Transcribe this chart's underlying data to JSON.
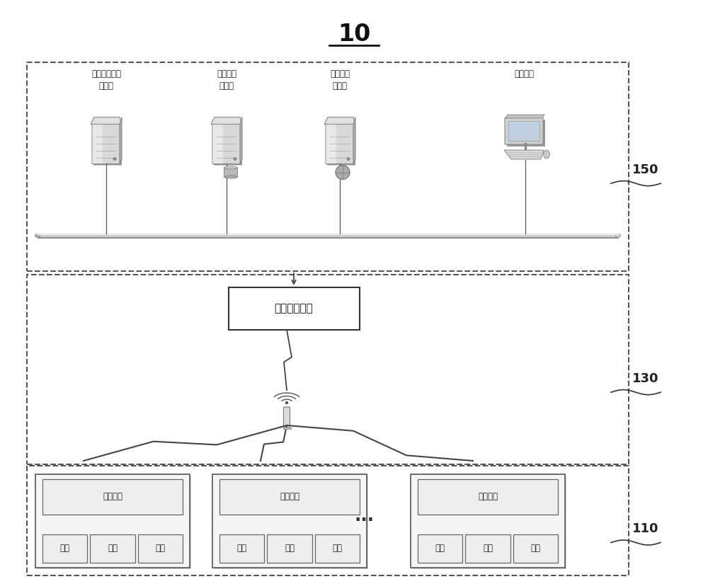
{
  "title": "10",
  "bg_color": "#ffffff",
  "label_150": "150",
  "label_130": "130",
  "label_110": "110",
  "wireless_network_text": "无线通信网络",
  "server1_label1": "关联分析处理",
  "server1_label2": "计算机",
  "server2_label1": "数据存储",
  "server2_label2": "服务器",
  "server3_label1": "应用系统",
  "server3_label2": "服务器",
  "terminal_label": "操作终端",
  "wireless_comm": "无线通信",
  "collect": "采集",
  "analyze": "分析",
  "store": "存储"
}
